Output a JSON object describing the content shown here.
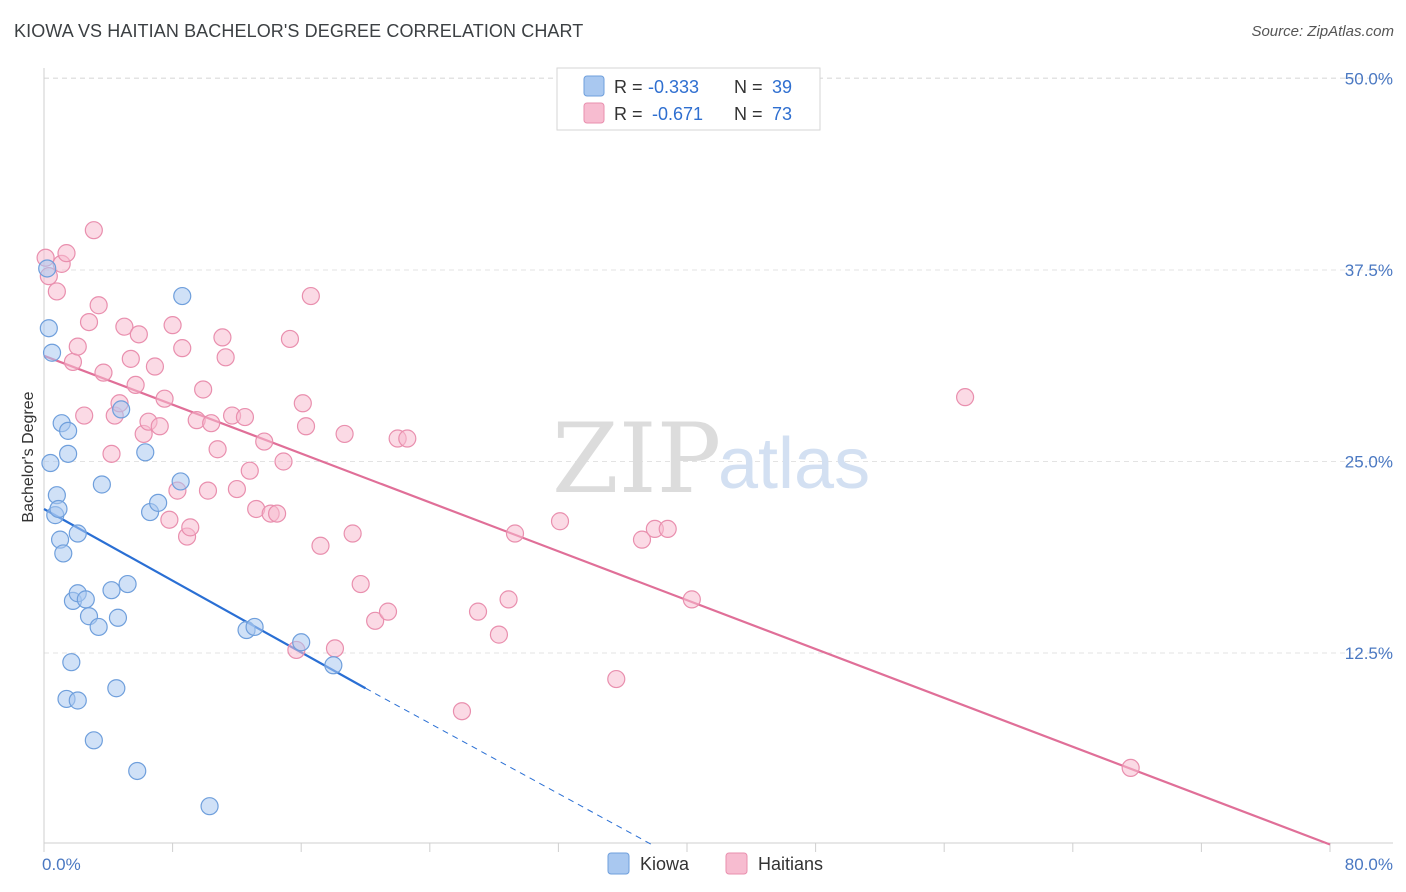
{
  "header": {
    "title": "KIOWA VS HAITIAN BACHELOR'S DEGREE CORRELATION CHART",
    "source": "Source: ZipAtlas.com"
  },
  "watermark": {
    "zip": "ZIP",
    "atlas": "atlas"
  },
  "colors": {
    "kiowa_fill": "#a9c8f0",
    "kiowa_stroke": "#6f9fdc",
    "kiowa_line": "#2a6fd4",
    "haitians_fill": "#f7bcd0",
    "haitians_stroke": "#e98fae",
    "haitians_line": "#e06f98",
    "grid": "#e3e3e3",
    "tick_label": "#4a78c2"
  },
  "legend": {
    "rows": [
      {
        "r_label": "R = ",
        "r_value": "-0.333",
        "n_label": "N = ",
        "n_value": "39"
      },
      {
        "r_label": "R = ",
        "r_value": "-0.671",
        "n_label": "N = ",
        "n_value": "73"
      }
    ]
  },
  "chart_data": {
    "type": "scatter",
    "title": "KIOWA VS HAITIAN BACHELOR'S DEGREE CORRELATION CHART",
    "xlabel": "",
    "ylabel": "Bachelor's Degree",
    "xlim": [
      0,
      80
    ],
    "ylim": [
      0,
      52
    ],
    "x_tick_labels": [
      "0.0%",
      "80.0%"
    ],
    "y_ticks": [
      12.5,
      25.0,
      37.5,
      50.0
    ],
    "y_tick_labels": [
      "12.5%",
      "25.0%",
      "37.5%",
      "50.0%"
    ],
    "grid": true,
    "legend_position": "top-center",
    "series": [
      {
        "name": "Kiowa",
        "points": [
          [
            0.2,
            37.6
          ],
          [
            0.3,
            33.7
          ],
          [
            0.5,
            32.1
          ],
          [
            0.4,
            24.9
          ],
          [
            0.7,
            21.5
          ],
          [
            0.8,
            22.8
          ],
          [
            0.9,
            21.9
          ],
          [
            1.0,
            19.9
          ],
          [
            1.1,
            27.5
          ],
          [
            1.2,
            19.0
          ],
          [
            1.5,
            27.0
          ],
          [
            1.5,
            25.5
          ],
          [
            1.4,
            9.5
          ],
          [
            1.7,
            11.9
          ],
          [
            1.8,
            15.9
          ],
          [
            2.1,
            16.4
          ],
          [
            2.1,
            9.4
          ],
          [
            2.1,
            20.3
          ],
          [
            2.6,
            16.0
          ],
          [
            2.8,
            14.9
          ],
          [
            3.1,
            6.8
          ],
          [
            3.4,
            14.2
          ],
          [
            3.6,
            23.5
          ],
          [
            4.2,
            16.6
          ],
          [
            4.5,
            10.2
          ],
          [
            4.6,
            14.8
          ],
          [
            4.8,
            28.4
          ],
          [
            5.2,
            17.0
          ],
          [
            5.8,
            4.8
          ],
          [
            6.3,
            25.6
          ],
          [
            6.6,
            21.7
          ],
          [
            7.1,
            22.3
          ],
          [
            8.5,
            23.7
          ],
          [
            8.6,
            35.8
          ],
          [
            10.3,
            2.5
          ],
          [
            12.6,
            14.0
          ],
          [
            13.1,
            14.2
          ],
          [
            16.0,
            13.2
          ],
          [
            18.0,
            11.7
          ]
        ]
      },
      {
        "name": "Haitians",
        "points": [
          [
            0.1,
            38.3
          ],
          [
            0.3,
            37.1
          ],
          [
            0.8,
            36.1
          ],
          [
            1.1,
            37.9
          ],
          [
            1.4,
            38.6
          ],
          [
            1.8,
            31.5
          ],
          [
            2.1,
            32.5
          ],
          [
            2.5,
            28.0
          ],
          [
            2.8,
            34.1
          ],
          [
            3.1,
            40.1
          ],
          [
            3.4,
            35.2
          ],
          [
            3.7,
            30.8
          ],
          [
            4.2,
            25.5
          ],
          [
            4.4,
            28.0
          ],
          [
            4.7,
            28.8
          ],
          [
            5.0,
            33.8
          ],
          [
            5.4,
            31.7
          ],
          [
            5.7,
            30.0
          ],
          [
            5.9,
            33.3
          ],
          [
            6.2,
            26.8
          ],
          [
            6.5,
            27.6
          ],
          [
            6.9,
            31.2
          ],
          [
            7.2,
            27.3
          ],
          [
            7.5,
            29.1
          ],
          [
            7.8,
            21.2
          ],
          [
            8.0,
            33.9
          ],
          [
            8.3,
            23.1
          ],
          [
            8.6,
            32.4
          ],
          [
            8.9,
            20.1
          ],
          [
            9.1,
            20.7
          ],
          [
            9.5,
            27.7
          ],
          [
            9.9,
            29.7
          ],
          [
            10.2,
            23.1
          ],
          [
            10.4,
            27.5
          ],
          [
            10.8,
            25.8
          ],
          [
            11.1,
            33.1
          ],
          [
            11.3,
            31.8
          ],
          [
            11.7,
            28.0
          ],
          [
            12.0,
            23.2
          ],
          [
            12.5,
            27.9
          ],
          [
            12.8,
            24.4
          ],
          [
            13.2,
            21.9
          ],
          [
            13.7,
            26.3
          ],
          [
            14.1,
            21.6
          ],
          [
            14.5,
            21.6
          ],
          [
            14.9,
            25.0
          ],
          [
            15.3,
            33.0
          ],
          [
            15.7,
            12.7
          ],
          [
            16.1,
            28.8
          ],
          [
            16.3,
            27.3
          ],
          [
            16.6,
            35.8
          ],
          [
            17.2,
            19.5
          ],
          [
            18.1,
            12.8
          ],
          [
            18.7,
            26.8
          ],
          [
            19.2,
            20.3
          ],
          [
            19.7,
            17.0
          ],
          [
            20.6,
            14.6
          ],
          [
            21.4,
            15.2
          ],
          [
            22.0,
            26.5
          ],
          [
            22.6,
            26.5
          ],
          [
            26.0,
            8.7
          ],
          [
            27.0,
            15.2
          ],
          [
            28.3,
            13.7
          ],
          [
            28.9,
            16.0
          ],
          [
            29.3,
            20.3
          ],
          [
            32.1,
            21.1
          ],
          [
            35.6,
            10.8
          ],
          [
            37.2,
            19.9
          ],
          [
            38.0,
            20.6
          ],
          [
            38.8,
            20.6
          ],
          [
            40.3,
            16.0
          ],
          [
            57.3,
            29.2
          ],
          [
            67.6,
            5.0
          ]
        ]
      }
    ],
    "trend_lines": [
      {
        "series": "Kiowa",
        "from": [
          0,
          21.9
        ],
        "to": [
          20.0,
          10.2
        ],
        "dashed_to": [
          37.8,
          0
        ]
      },
      {
        "series": "Haitians",
        "from": [
          0,
          31.9
        ],
        "to": [
          80.0,
          0
        ]
      }
    ]
  },
  "bottom_legend": {
    "items": [
      {
        "label": "Kiowa"
      },
      {
        "label": "Haitians"
      }
    ]
  }
}
